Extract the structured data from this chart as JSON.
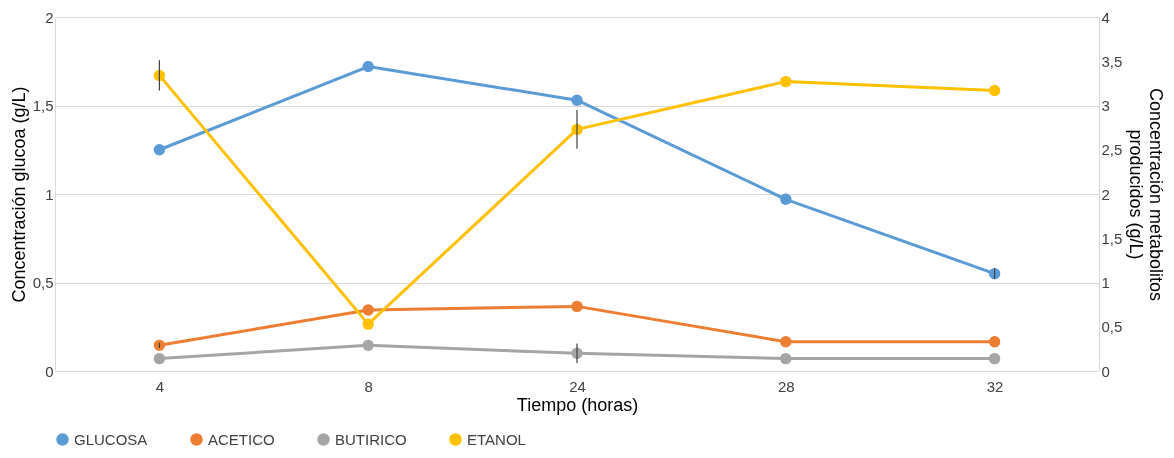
{
  "chart_data": {
    "type": "line",
    "xlabel": "Tiempo (horas)",
    "ylabel": "Concentración glucoa (g/L)",
    "y2label": "Concentración metabolitos producidos (g/L)",
    "categories": [
      "4",
      "8",
      "24",
      "28",
      "32"
    ],
    "series": [
      {
        "name": "GLUCOSA",
        "color": "#5b9bd5",
        "values": [
          1.25,
          1.72,
          1.53,
          0.97,
          0.55
        ],
        "errors": [
          null,
          null,
          null,
          null,
          0.03
        ]
      },
      {
        "name": "ACETICO",
        "color": "#ed7d31",
        "values": [
          0.29,
          0.69,
          0.73,
          0.33,
          0.33
        ],
        "axis": "y2",
        "errors": [
          0.03,
          null,
          null,
          null,
          null
        ]
      },
      {
        "name": "BUTIRICO",
        "color": "#a5a5a5",
        "values": [
          0.14,
          0.29,
          0.2,
          0.14,
          0.14
        ],
        "axis": "y2",
        "errors": [
          null,
          null,
          0.11,
          null,
          null
        ]
      },
      {
        "name": "ETANOL",
        "color": "#ffc000",
        "values": [
          3.34,
          0.53,
          2.73,
          3.27,
          3.17
        ],
        "axis": "y2",
        "errors": [
          0.17,
          null,
          0.22,
          null,
          null
        ]
      }
    ],
    "ylim": [
      0,
      2
    ],
    "yticks": [
      0,
      {
        "value": 0.5,
        "label": "0,5"
      },
      1,
      {
        "value": 1.5,
        "label": "1,5"
      },
      2
    ],
    "y2lim": [
      0,
      4
    ],
    "y2ticks": [
      0,
      {
        "value": 0.5,
        "label": "0,5"
      },
      1,
      {
        "value": 1.5,
        "label": "1,5"
      },
      2,
      {
        "value": 2.5,
        "label": "2,5"
      },
      3,
      {
        "value": 3.5,
        "label": "3,5"
      },
      4
    ],
    "grid": "y",
    "legend": "bottom",
    "marker": "circle",
    "line_style": "solid"
  }
}
